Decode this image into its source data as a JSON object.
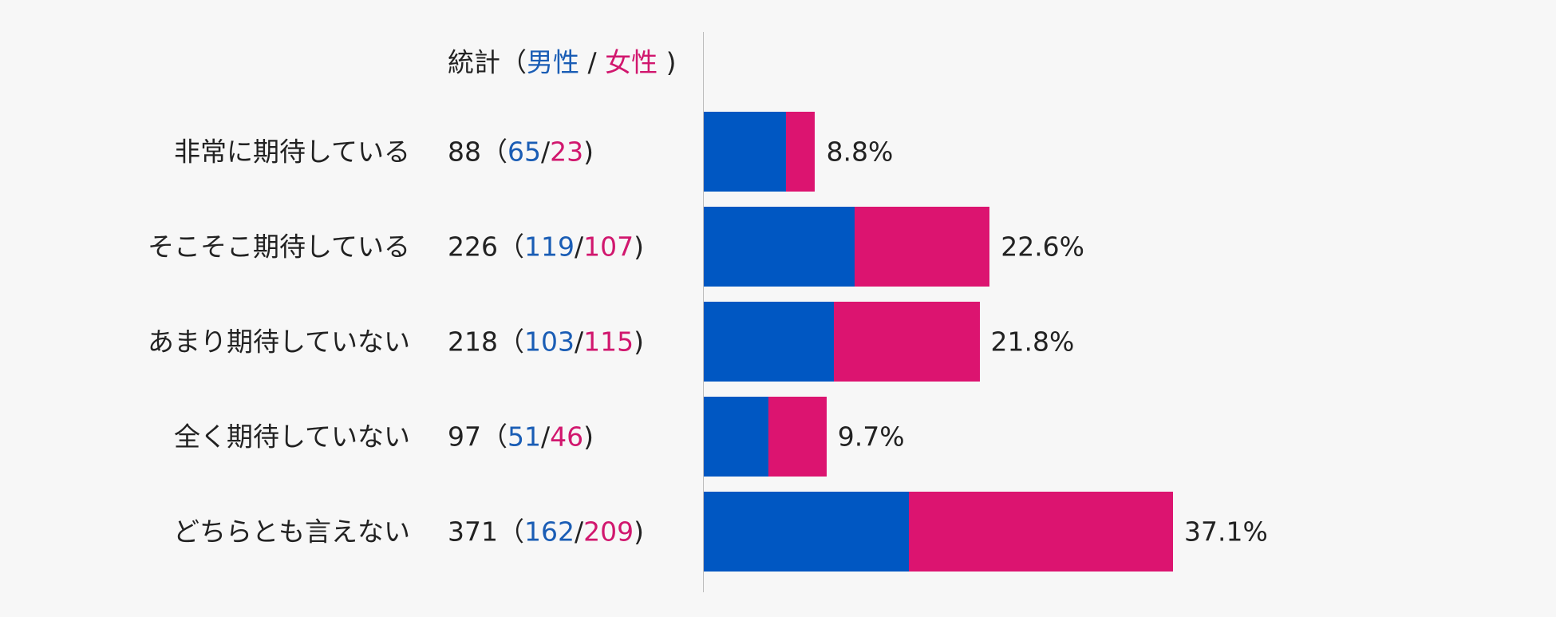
{
  "header": {
    "stat_label": "統計（",
    "male_label": "男性",
    "separator": " / ",
    "female_label": "女性",
    "close": " )"
  },
  "colors": {
    "male": "#0057c2",
    "female": "#dc1470",
    "male_text": "#1a5db5",
    "female_text": "#d1176e"
  },
  "chart_data": {
    "type": "bar",
    "stacked": true,
    "orientation": "horizontal",
    "categories": [
      "非常に期待している",
      "そこそこ期待している",
      "あまり期待していない",
      "全く期待していない",
      "どちらとも言えない"
    ],
    "series": [
      {
        "name": "男性",
        "values": [
          65,
          119,
          103,
          51,
          162
        ]
      },
      {
        "name": "女性",
        "values": [
          23,
          107,
          115,
          46,
          209
        ]
      }
    ],
    "totals": [
      88,
      226,
      218,
      97,
      371
    ],
    "percent_labels": [
      "8.8%",
      "22.6%",
      "21.8%",
      "9.7%",
      "37.1%"
    ]
  }
}
